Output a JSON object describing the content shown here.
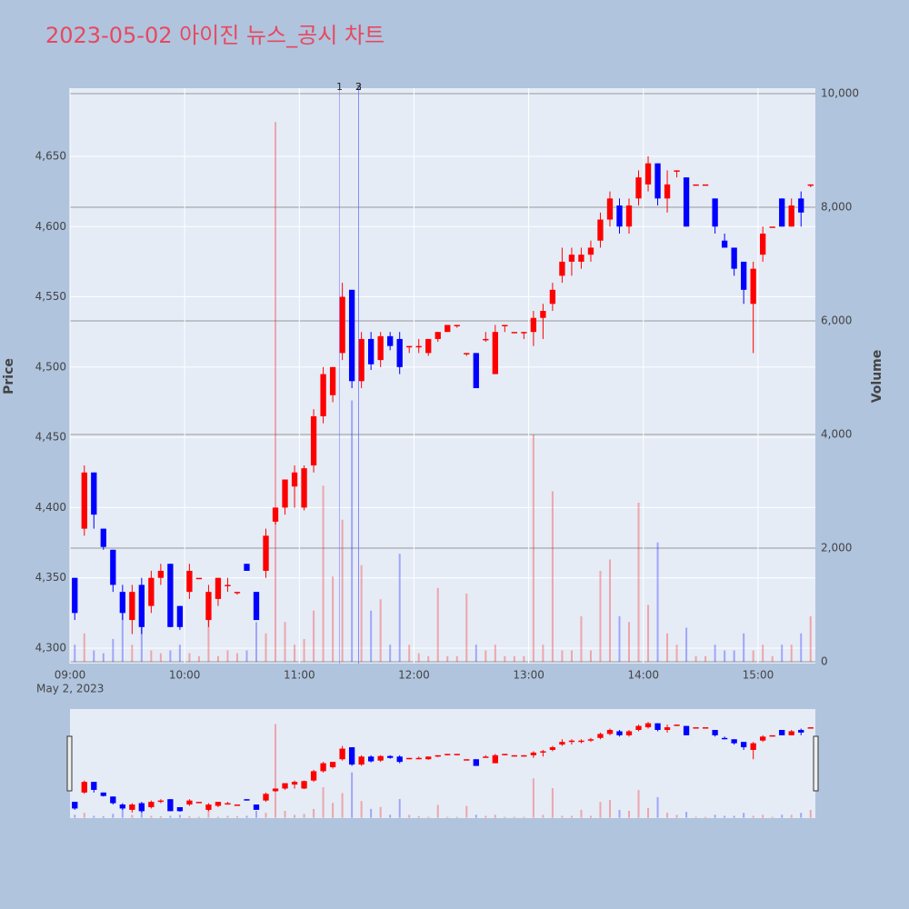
{
  "chart_data": {
    "type": "candlestick",
    "title": "2023-05-02 아이진 뉴스_공시 차트",
    "y_label": "Price",
    "y2_label": "Volume",
    "date_label": "May 2, 2023",
    "increasing_color": "#ff0000",
    "decreasing_color": "#0000ff",
    "x": [
      "09:00",
      "09:05",
      "09:10",
      "09:15",
      "09:20",
      "09:25",
      "09:30",
      "09:35",
      "09:40",
      "09:45",
      "09:50",
      "09:55",
      "10:00",
      "10:05",
      "10:10",
      "10:15",
      "10:20",
      "10:25",
      "10:30",
      "10:35",
      "10:40",
      "10:45",
      "10:50",
      "10:55",
      "11:00",
      "11:05",
      "11:10",
      "11:15",
      "11:20",
      "11:25",
      "11:30",
      "11:35",
      "11:40",
      "11:45",
      "11:50",
      "11:55",
      "12:00",
      "12:05",
      "12:10",
      "12:15",
      "12:20",
      "12:25",
      "12:30",
      "12:35",
      "12:40",
      "12:45",
      "12:50",
      "12:55",
      "13:00",
      "13:05",
      "13:10",
      "13:15",
      "13:20",
      "13:25",
      "13:30",
      "13:35",
      "13:40",
      "13:45",
      "13:50",
      "13:55",
      "14:00",
      "14:05",
      "14:10",
      "14:15",
      "14:20",
      "14:25",
      "14:30",
      "14:35",
      "14:40",
      "14:45",
      "14:50",
      "14:55",
      "15:00",
      "15:05",
      "15:10",
      "15:15",
      "15:20",
      "15:25"
    ],
    "open": [
      4350,
      4385,
      4425,
      4385,
      4370,
      4340,
      4320,
      4345,
      4330,
      4350,
      4360,
      4330,
      4340,
      4350,
      4320,
      4335,
      4345,
      4340,
      4360,
      4340,
      4355,
      4390,
      4400,
      4415,
      4400,
      4430,
      4465,
      4480,
      4510,
      4555,
      4490,
      4520,
      4505,
      4522,
      4520,
      4515,
      4515,
      4510,
      4520,
      4525,
      4530,
      4510,
      4510,
      4520,
      4495,
      4530,
      4525,
      4525,
      4525,
      4535,
      4545,
      4565,
      4575,
      4575,
      4580,
      4590,
      4605,
      4615,
      4600,
      4620,
      4630,
      4645,
      4620,
      4640,
      4635,
      4630,
      4630,
      4620,
      4590,
      4585,
      4575,
      4545,
      4580,
      4600,
      4620,
      4600,
      4620,
      4630
    ],
    "high": [
      4350,
      4430,
      4425,
      4385,
      4370,
      4345,
      4345,
      4350,
      4355,
      4360,
      4360,
      4330,
      4360,
      4350,
      4345,
      4350,
      4350,
      4340,
      4360,
      4340,
      4385,
      4400,
      4420,
      4430,
      4430,
      4470,
      4500,
      4500,
      4560,
      4555,
      4525,
      4525,
      4525,
      4525,
      4525,
      4515,
      4520,
      4520,
      4525,
      4530,
      4530,
      4510,
      4510,
      4525,
      4530,
      4530,
      4525,
      4525,
      4540,
      4545,
      4560,
      4585,
      4585,
      4585,
      4590,
      4610,
      4625,
      4620,
      4620,
      4640,
      4650,
      4645,
      4640,
      4640,
      4635,
      4630,
      4630,
      4620,
      4595,
      4585,
      4575,
      4575,
      4600,
      4600,
      4620,
      4620,
      4625,
      4630
    ],
    "low": [
      4320,
      4380,
      4385,
      4370,
      4340,
      4320,
      4310,
      4310,
      4325,
      4345,
      4315,
      4313,
      4335,
      4350,
      4315,
      4330,
      4340,
      4338,
      4355,
      4320,
      4350,
      4388,
      4395,
      4400,
      4398,
      4425,
      4460,
      4475,
      4505,
      4485,
      4485,
      4498,
      4500,
      4512,
      4495,
      4510,
      4510,
      4508,
      4518,
      4525,
      4528,
      4508,
      4485,
      4518,
      4495,
      4525,
      4525,
      4520,
      4515,
      4520,
      4540,
      4560,
      4565,
      4570,
      4575,
      4585,
      4600,
      4595,
      4595,
      4615,
      4625,
      4615,
      4610,
      4635,
      4600,
      4630,
      4630,
      4595,
      4585,
      4565,
      4545,
      4510,
      4575,
      4600,
      4600,
      4600,
      4600,
      4628
    ],
    "close": [
      4325,
      4425,
      4395,
      4372,
      4345,
      4325,
      4340,
      4315,
      4350,
      4355,
      4315,
      4315,
      4355,
      4350,
      4340,
      4350,
      4345,
      4340,
      4355,
      4320,
      4380,
      4400,
      4420,
      4425,
      4428,
      4465,
      4495,
      4500,
      4550,
      4490,
      4520,
      4502,
      4522,
      4515,
      4500,
      4515,
      4515,
      4520,
      4525,
      4530,
      4530,
      4510,
      4485,
      4520,
      4525,
      4530,
      4525,
      4525,
      4535,
      4540,
      4555,
      4575,
      4580,
      4580,
      4585,
      4605,
      4620,
      4600,
      4615,
      4635,
      4645,
      4620,
      4630,
      4640,
      4600,
      4630,
      4630,
      4600,
      4585,
      4570,
      4555,
      4570,
      4595,
      4600,
      4600,
      4615,
      4610,
      4630
    ],
    "volume": [
      300,
      500,
      200,
      150,
      400,
      900,
      300,
      1100,
      200,
      150,
      200,
      300,
      150,
      100,
      1000,
      100,
      200,
      150,
      200,
      700,
      500,
      9500,
      700,
      300,
      400,
      900,
      3100,
      1500,
      2500,
      4600,
      1700,
      900,
      1100,
      300,
      1900,
      300,
      150,
      100,
      1300,
      100,
      100,
      1200,
      300,
      200,
      300,
      100,
      100,
      100,
      4000,
      300,
      3000,
      200,
      200,
      800,
      200,
      1600,
      1800,
      800,
      700,
      2800,
      1000,
      2100,
      500,
      300,
      600,
      100,
      100,
      300,
      200,
      200,
      500,
      200,
      300,
      100,
      300,
      300,
      500,
      800
    ],
    "xlim": [
      "09:00",
      "15:30"
    ],
    "xticks": [
      "09:00",
      "10:00",
      "11:00",
      "12:00",
      "13:00",
      "14:00",
      "15:00"
    ],
    "ylim": [
      4289,
      4698.5
    ],
    "yticks": [
      {
        "value": 4300,
        "label": "4,300"
      },
      {
        "value": 4350,
        "label": "4,350"
      },
      {
        "value": 4400,
        "label": "4,400"
      },
      {
        "value": 4450,
        "label": "4,450"
      },
      {
        "value": 4500,
        "label": "4,500"
      },
      {
        "value": 4550,
        "label": "4,550"
      },
      {
        "value": 4600,
        "label": "4,600"
      },
      {
        "value": 4650,
        "label": "4,650"
      }
    ],
    "y2lim": [
      -32,
      10096
    ],
    "y2ticks": [
      0,
      {
        "value": 2000,
        "label": "2,000"
      },
      {
        "value": 4000,
        "label": "4,000"
      },
      {
        "value": 6000,
        "label": "6,000"
      },
      {
        "value": 8000,
        "label": "8,000"
      },
      {
        "value": 10000,
        "label": "10,000"
      }
    ],
    "annotations": [
      {
        "x": "11:21",
        "text": "1"
      },
      {
        "x": "11:31",
        "text": "2"
      },
      {
        "x": "11:31",
        "text": "3"
      }
    ],
    "grid": true,
    "rangeslider": true
  }
}
